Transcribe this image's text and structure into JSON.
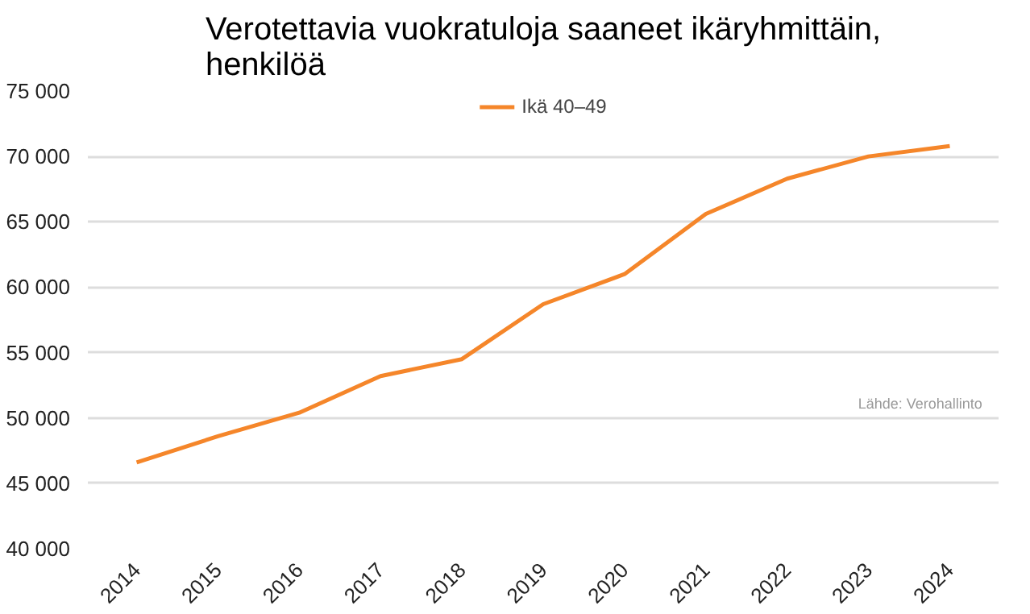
{
  "chart_data": {
    "type": "line",
    "title": "Verotettavia vuokratuloja saaneet ikäryhmittäin, henkilöä",
    "categories": [
      "2014",
      "2015",
      "2016",
      "2017",
      "2018",
      "2019",
      "2020",
      "2021",
      "2022",
      "2023",
      "2024"
    ],
    "series": [
      {
        "name": "Ikä 40–49",
        "color": "#f5862a",
        "values": [
          46600,
          48600,
          50400,
          53200,
          54500,
          58700,
          61000,
          65600,
          68300,
          70000,
          70800
        ]
      }
    ],
    "ylim": [
      40000,
      75000
    ],
    "yticks": [
      {
        "value": 40000,
        "label": "40 000"
      },
      {
        "value": 45000,
        "label": "45 000"
      },
      {
        "value": 50000,
        "label": "50 000"
      },
      {
        "value": 55000,
        "label": "55 000"
      },
      {
        "value": 60000,
        "label": "60 000"
      },
      {
        "value": 65000,
        "label": "65 000"
      },
      {
        "value": 70000,
        "label": "70 000"
      },
      {
        "value": 75000,
        "label": "75 000"
      }
    ],
    "grid": "y",
    "legend": "top",
    "marker": "none",
    "line_style": "solid",
    "annotations": [
      "Lähde: Verohallinto"
    ]
  }
}
